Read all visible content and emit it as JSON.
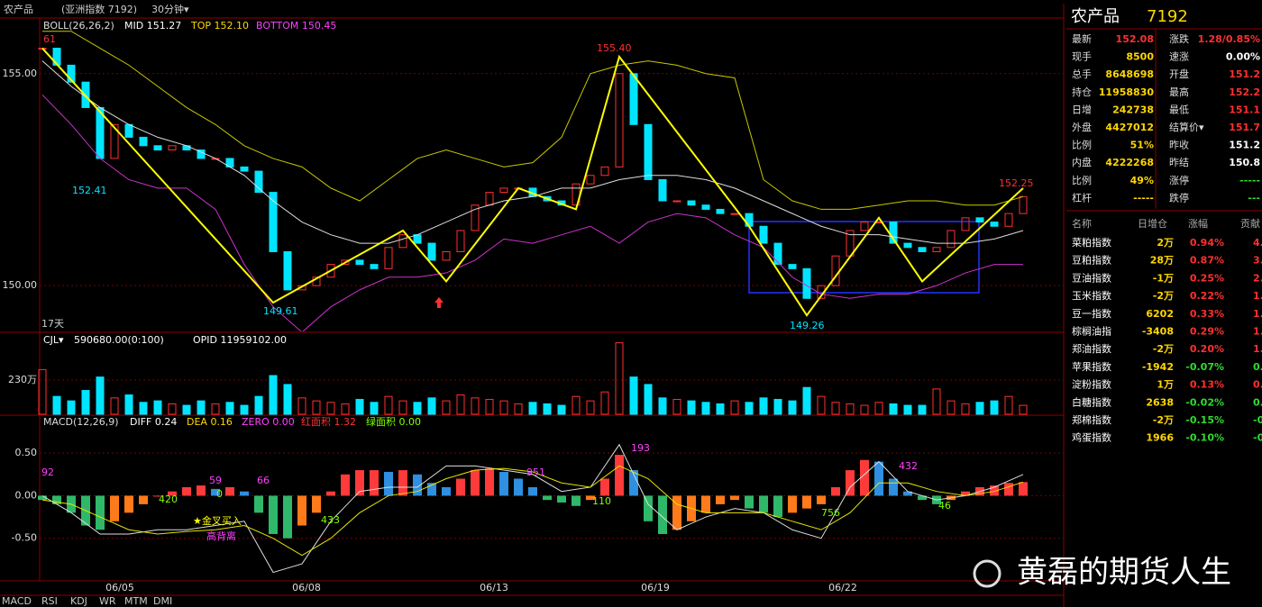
{
  "title_bar": {
    "name": "农产品",
    "index": "(亚洲指数 7192)",
    "period": "30分钟▾"
  },
  "tabs": [
    "MACD",
    "RSI",
    "KDJ",
    "WR",
    "MTM",
    "DMI"
  ],
  "watermark": "黄磊的期货人生",
  "chart_data": [
    {
      "type": "candlestick",
      "indicator": "BOLL(26,26,2)",
      "legend": [
        "MID 151.27",
        "TOP 152.10",
        "BOTTOM 150.45"
      ],
      "ylim": [
        148.92,
        156.27
      ],
      "yticks": [
        {
          "value": 150,
          "label": "150.00"
        },
        {
          "value": 155,
          "label": "155.00"
        }
      ],
      "close": [
        155.6,
        155.2,
        154.8,
        154.2,
        153.0,
        153.8,
        153.5,
        153.3,
        153.2,
        153.3,
        153.2,
        153.0,
        153.0,
        152.8,
        152.7,
        152.2,
        150.8,
        149.9,
        150.0,
        150.2,
        150.5,
        150.6,
        150.5,
        150.4,
        150.9,
        151.2,
        151.0,
        150.6,
        150.8,
        151.3,
        151.9,
        152.2,
        152.3,
        152.3,
        152.1,
        152.0,
        151.9,
        152.4,
        152.6,
        152.8,
        155.0,
        153.8,
        152.5,
        152.0,
        152.0,
        151.9,
        151.8,
        151.7,
        151.7,
        151.4,
        151.0,
        150.5,
        150.4,
        149.7,
        150.0,
        150.7,
        151.3,
        151.5,
        151.5,
        151.0,
        150.9,
        150.8,
        150.9,
        151.3,
        151.6,
        151.5,
        151.4,
        151.7,
        152.1
      ],
      "boll": {
        "mid": [
          155.3,
          154.7,
          154.2,
          153.8,
          153.5,
          153.3,
          153.0,
          152.6,
          152.0,
          151.5,
          151.2,
          151.0,
          151.0,
          151.2,
          151.5,
          151.8,
          152.0,
          152.1,
          152.3,
          152.3,
          152.5,
          152.6,
          152.6,
          152.5,
          152.3,
          152.0,
          151.7,
          151.4,
          151.2,
          151.2,
          151.1,
          151.0,
          151.0,
          151.1,
          151.3
        ],
        "top": [
          156.0,
          156.0,
          155.6,
          155.2,
          154.7,
          154.2,
          153.8,
          153.3,
          153.0,
          152.8,
          152.3,
          152.0,
          152.5,
          153.0,
          153.2,
          153.0,
          152.8,
          152.9,
          153.5,
          155.0,
          155.2,
          155.3,
          155.2,
          155.0,
          154.9,
          152.5,
          152.0,
          151.8,
          151.8,
          151.9,
          152.0,
          152.0,
          151.9,
          151.9,
          152.1
        ],
        "bottom": [
          154.5,
          153.8,
          153.0,
          152.5,
          152.3,
          152.3,
          151.8,
          150.5,
          149.5,
          148.9,
          149.5,
          149.9,
          150.2,
          150.2,
          150.3,
          150.6,
          151.1,
          151.0,
          151.2,
          151.4,
          151.0,
          151.5,
          151.7,
          151.6,
          151.2,
          150.9,
          150.2,
          149.8,
          149.7,
          149.8,
          149.8,
          150.0,
          150.3,
          150.5,
          150.5
        ]
      },
      "wave": {
        "x": [
          0,
          16,
          25,
          28,
          33,
          37,
          40,
          49,
          53,
          58,
          61,
          68
        ],
        "y": [
          155.6,
          149.6,
          151.3,
          150.1,
          152.3,
          151.8,
          155.4,
          151.4,
          149.3,
          151.6,
          150.1,
          152.3
        ]
      },
      "annotations": [
        "61",
        "155.40",
        "152.41",
        "149.61",
        "149.26",
        "152.25",
        "17天"
      ]
    },
    {
      "type": "bar",
      "legend": [
        "CJL▾",
        "590680.00(0:100)",
        "OPID 11959102.00"
      ],
      "ylim": [
        0,
        514
      ],
      "yticks": [
        {
          "value": 230,
          "label": "230万"
        }
      ],
      "values": [
        300,
        120,
        90,
        160,
        250,
        110,
        130,
        80,
        90,
        70,
        60,
        90,
        70,
        80,
        60,
        120,
        260,
        200,
        110,
        90,
        80,
        70,
        100,
        80,
        120,
        90,
        80,
        110,
        90,
        130,
        110,
        100,
        90,
        70,
        80,
        70,
        60,
        120,
        90,
        150,
        480,
        250,
        200,
        110,
        100,
        90,
        80,
        70,
        90,
        80,
        110,
        100,
        90,
        180,
        120,
        80,
        70,
        60,
        80,
        70,
        60,
        60,
        170,
        90,
        70,
        80,
        90,
        120,
        60
      ]
    },
    {
      "type": "macd",
      "legend": [
        "MACD(12,26,9)",
        "DIFF 0.24",
        "DEA 0.16",
        "ZERO 0.00",
        "红面积 1.32",
        "绿面积 0.00"
      ],
      "ylim": [
        -1.0,
        0.935
      ],
      "yticks": [
        {
          "value": 0.5,
          "label": "0.50"
        },
        {
          "value": 0,
          "label": "0.00"
        },
        {
          "value": -0.5,
          "label": "-0.50"
        }
      ],
      "values": [
        -0.05,
        -0.1,
        -0.2,
        -0.35,
        -0.4,
        -0.3,
        -0.2,
        -0.1,
        0.0,
        0.05,
        0.1,
        0.12,
        0.08,
        0.1,
        0.05,
        -0.2,
        -0.45,
        -0.5,
        -0.35,
        -0.2,
        0.05,
        0.25,
        0.3,
        0.3,
        0.28,
        0.3,
        0.25,
        0.15,
        0.1,
        0.2,
        0.3,
        0.32,
        0.28,
        0.2,
        0.1,
        -0.05,
        -0.08,
        -0.12,
        -0.05,
        0.2,
        0.48,
        0.3,
        -0.3,
        -0.45,
        -0.4,
        -0.3,
        -0.2,
        -0.1,
        -0.05,
        -0.15,
        -0.2,
        -0.25,
        -0.2,
        -0.15,
        -0.1,
        0.1,
        0.3,
        0.42,
        0.4,
        0.2,
        0.05,
        -0.05,
        -0.1,
        -0.05,
        0.05,
        0.1,
        0.12,
        0.15,
        0.16
      ],
      "diff": [
        0.0,
        -0.2,
        -0.45,
        -0.45,
        -0.4,
        -0.4,
        -0.35,
        -0.3,
        -0.9,
        -0.8,
        -0.3,
        0.05,
        0.1,
        0.1,
        0.35,
        0.35,
        0.3,
        0.25,
        0.05,
        0.1,
        0.6,
        -0.1,
        -0.4,
        -0.25,
        -0.15,
        -0.2,
        -0.4,
        -0.5,
        0.1,
        0.4,
        0.05,
        -0.05,
        0.0,
        0.1,
        0.25
      ],
      "dea": [
        -0.05,
        -0.1,
        -0.25,
        -0.4,
        -0.45,
        -0.42,
        -0.4,
        -0.35,
        -0.5,
        -0.7,
        -0.5,
        -0.2,
        0.0,
        0.05,
        0.2,
        0.3,
        0.32,
        0.28,
        0.15,
        0.1,
        0.35,
        0.2,
        -0.1,
        -0.2,
        -0.2,
        -0.2,
        -0.3,
        -0.4,
        -0.2,
        0.15,
        0.15,
        0.05,
        0.0,
        0.05,
        0.16
      ],
      "annotations": [
        "92",
        "420",
        "59",
        "0",
        "66",
        "433",
        "951",
        "110",
        "193",
        "756",
        "432",
        "46",
        "★金叉买入",
        "高背离"
      ],
      "x_labels": [
        "06/05",
        "06/08",
        "06/13",
        "06/19",
        "06/22"
      ]
    }
  ],
  "quote_panel": {
    "title": "农产品",
    "code": "7192",
    "rows": [
      [
        "最新",
        "152.08",
        "涨跌",
        "1.28/0.85%"
      ],
      [
        "现手",
        "8500",
        "速涨",
        "0.00%"
      ],
      [
        "总手",
        "8648698",
        "开盘",
        "151.2"
      ],
      [
        "持仓",
        "11958830",
        "最高",
        "152.2"
      ],
      [
        "日增",
        "242738",
        "最低",
        "151.1"
      ],
      [
        "外盘",
        "4427012",
        "结算价▾",
        "151.7"
      ],
      [
        "比例",
        "51%",
        "昨收",
        "151.2"
      ],
      [
        "内盘",
        "4222268",
        "昨结",
        "150.8"
      ],
      [
        "比例",
        "49%",
        "涨停",
        "-----"
      ],
      [
        "杠杆",
        "-----",
        "跌停",
        "---"
      ]
    ]
  },
  "sector_table": {
    "header": [
      "名称",
      "日增仓",
      "涨幅",
      "贡献"
    ],
    "rows": [
      [
        "菜粕指数",
        "2万",
        "0.94%",
        "4."
      ],
      [
        "豆粕指数",
        "28万",
        "0.87%",
        "3."
      ],
      [
        "豆油指数",
        "-1万",
        "0.25%",
        "2."
      ],
      [
        "玉米指数",
        "-2万",
        "0.22%",
        "1."
      ],
      [
        "豆一指数",
        "6202",
        "0.33%",
        "1."
      ],
      [
        "棕榈油指",
        "-3408",
        "0.29%",
        "1."
      ],
      [
        "郑油指数",
        "-2万",
        "0.20%",
        "1."
      ],
      [
        "苹果指数",
        "-1942",
        "-0.07%",
        "0."
      ],
      [
        "淀粉指数",
        "1万",
        "0.13%",
        "0."
      ],
      [
        "白糖指数",
        "2638",
        "-0.02%",
        "0."
      ],
      [
        "郑棉指数",
        "-2万",
        "-0.15%",
        "-0."
      ],
      [
        "鸡蛋指数",
        "1966",
        "-0.10%",
        "-0."
      ]
    ]
  }
}
